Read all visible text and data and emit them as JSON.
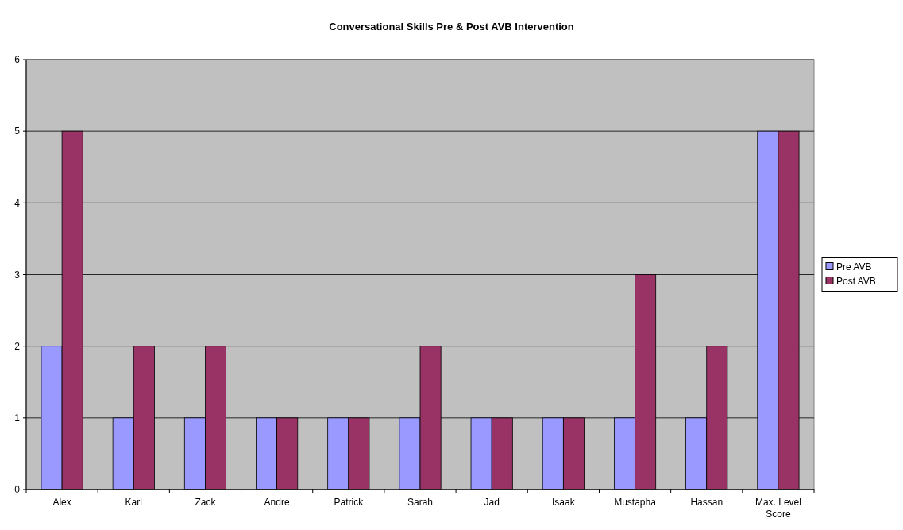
{
  "chart_data": {
    "type": "bar",
    "title": "Conversational Skills Pre & Post AVB Intervention",
    "categories": [
      "Alex",
      "Karl",
      "Zack",
      "Andre",
      "Patrick",
      "Sarah",
      "Jad",
      "Isaak",
      "Mustapha",
      "Hassan",
      "Max. Level Score"
    ],
    "series": [
      {
        "name": "Pre AVB",
        "color": "#9999ff",
        "values": [
          2,
          1,
          1,
          1,
          1,
          1,
          1,
          1,
          1,
          1,
          5
        ]
      },
      {
        "name": "Post AVB",
        "color": "#993366",
        "values": [
          5,
          2,
          2,
          1,
          1,
          2,
          1,
          1,
          3,
          2,
          5
        ]
      }
    ],
    "ylim": [
      0,
      6
    ],
    "yticks": [
      0,
      1,
      2,
      3,
      4,
      5,
      6
    ],
    "grid": "y",
    "legend": "right"
  }
}
